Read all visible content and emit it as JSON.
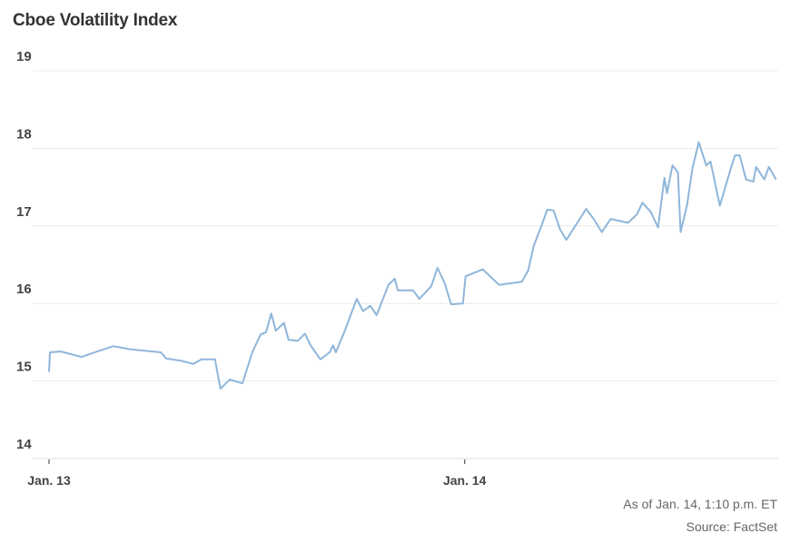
{
  "chart_data": {
    "type": "line",
    "title": "Cboe Volatility Index",
    "xlabel": "",
    "ylabel": "",
    "ylim": [
      14,
      19
    ],
    "yticks": [
      "19",
      "18",
      "17",
      "16",
      "15",
      "14"
    ],
    "xticks": [
      {
        "label": "Jan. 13",
        "at": "01-13 00:00"
      },
      {
        "label": "Jan. 14",
        "at": "01-14 00:00"
      }
    ],
    "xlim": [
      "01-13 00:00",
      "01-14 18:00"
    ],
    "grid": true,
    "legend": "none",
    "line_color": "#8fb6da",
    "points": [
      [
        "01-13 00:00",
        15.12
      ],
      [
        "01-13 00:03",
        15.37
      ],
      [
        "01-13 00:41",
        15.38
      ],
      [
        "01-13 01:53",
        15.31
      ],
      [
        "01-13 02:47",
        15.38
      ],
      [
        "01-13 03:43",
        15.45
      ],
      [
        "01-13 04:40",
        15.41
      ],
      [
        "01-13 06:27",
        15.37
      ],
      [
        "01-13 06:46",
        15.29
      ],
      [
        "01-13 07:39",
        15.26
      ],
      [
        "01-13 08:20",
        15.22
      ],
      [
        "01-13 08:48",
        15.28
      ],
      [
        "01-13 09:35",
        15.28
      ],
      [
        "01-13 09:39",
        15.2
      ],
      [
        "01-13 09:54",
        14.9
      ],
      [
        "01-13 10:26",
        15.02
      ],
      [
        "01-13 11:10",
        14.97
      ],
      [
        "01-13 11:44",
        15.37
      ],
      [
        "01-13 12:13",
        15.6
      ],
      [
        "01-13 12:32",
        15.63
      ],
      [
        "01-13 12:50",
        15.87
      ],
      [
        "01-13 13:06",
        15.65
      ],
      [
        "01-13 13:34",
        15.75
      ],
      [
        "01-13 13:50",
        15.53
      ],
      [
        "01-13 14:22",
        15.52
      ],
      [
        "01-13 14:47",
        15.61
      ],
      [
        "01-13 15:06",
        15.46
      ],
      [
        "01-13 15:40",
        15.28
      ],
      [
        "01-13 16:12",
        15.37
      ],
      [
        "01-13 16:24",
        15.46
      ],
      [
        "01-13 16:34",
        15.37
      ],
      [
        "01-13 17:05",
        15.65
      ],
      [
        "01-13 17:46",
        16.06
      ],
      [
        "01-13 18:08",
        15.9
      ],
      [
        "01-13 18:33",
        15.97
      ],
      [
        "01-13 18:55",
        15.85
      ],
      [
        "01-13 19:36",
        16.24
      ],
      [
        "01-13 19:58",
        16.32
      ],
      [
        "01-13 20:08",
        16.17
      ],
      [
        "01-13 21:01",
        16.17
      ],
      [
        "01-13 21:23",
        16.06
      ],
      [
        "01-13 22:04",
        16.22
      ],
      [
        "01-13 22:26",
        16.46
      ],
      [
        "01-13 22:51",
        16.26
      ],
      [
        "01-13 23:13",
        15.99
      ],
      [
        "01-13 23:54",
        16.0
      ],
      [
        "01-14 00:03",
        16.35
      ],
      [
        "01-14 01:03",
        16.44
      ],
      [
        "01-14 01:59",
        16.24
      ],
      [
        "01-14 03:18",
        16.28
      ],
      [
        "01-14 03:40",
        16.42
      ],
      [
        "01-14 03:59",
        16.74
      ],
      [
        "01-14 04:27",
        17.01
      ],
      [
        "01-14 04:46",
        17.21
      ],
      [
        "01-14 05:08",
        17.2
      ],
      [
        "01-14 05:30",
        16.96
      ],
      [
        "01-14 05:52",
        16.82
      ],
      [
        "01-14 06:27",
        17.02
      ],
      [
        "01-14 07:01",
        17.22
      ],
      [
        "01-14 07:29",
        17.08
      ],
      [
        "01-14 07:55",
        16.92
      ],
      [
        "01-14 08:26",
        17.09
      ],
      [
        "01-14 09:26",
        17.04
      ],
      [
        "01-14 09:57",
        17.15
      ],
      [
        "01-14 10:16",
        17.3
      ],
      [
        "01-14 10:45",
        17.18
      ],
      [
        "01-14 11:10",
        16.98
      ],
      [
        "01-14 11:32",
        17.62
      ],
      [
        "01-14 11:41",
        17.42
      ],
      [
        "01-14 12:00",
        17.78
      ],
      [
        "01-14 12:19",
        17.69
      ],
      [
        "01-14 12:28",
        16.92
      ],
      [
        "01-14 12:51",
        17.28
      ],
      [
        "01-14 13:09",
        17.74
      ],
      [
        "01-14 13:31",
        18.08
      ],
      [
        "01-14 13:57",
        17.78
      ],
      [
        "01-14 14:12",
        17.83
      ],
      [
        "01-14 14:44",
        17.26
      ],
      [
        "01-14 15:22",
        17.74
      ],
      [
        "01-14 15:37",
        17.91
      ],
      [
        "01-14 15:53",
        17.91
      ],
      [
        "01-14 16:15",
        17.6
      ],
      [
        "01-14 16:40",
        17.57
      ],
      [
        "01-14 16:50",
        17.76
      ],
      [
        "01-14 17:18",
        17.6
      ],
      [
        "01-14 17:34",
        17.76
      ],
      [
        "01-14 17:59",
        17.6
      ]
    ]
  },
  "footer": {
    "as_of": "As of Jan. 14, 1:10 p.m. ET",
    "source": "Source: FactSet"
  }
}
